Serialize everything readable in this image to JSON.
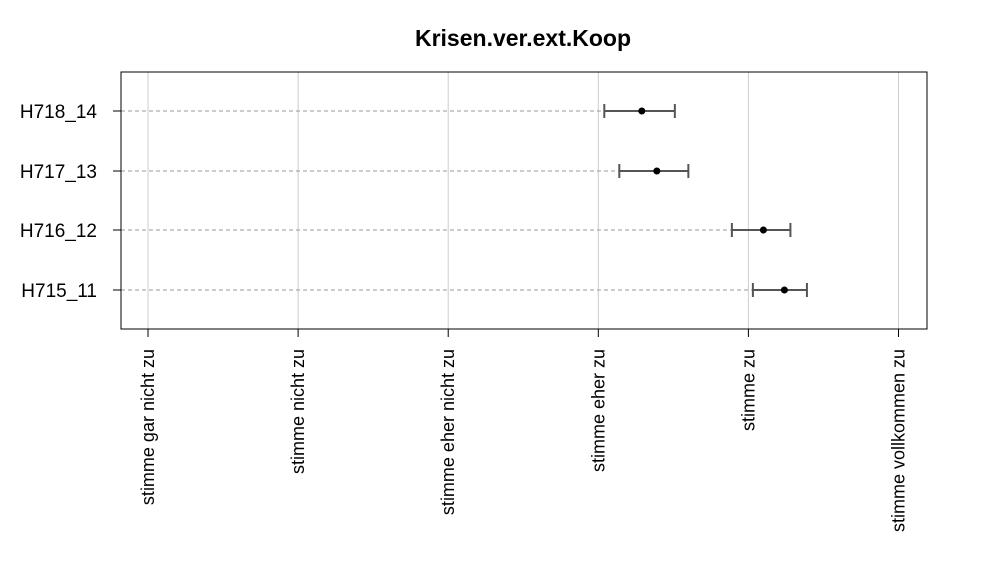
{
  "chart_data": {
    "type": "dot-errorbar",
    "title": "Krisen.ver.ext.Koop",
    "x_ticks": [
      {
        "value": 1,
        "label": "stimme gar nicht zu"
      },
      {
        "value": 2,
        "label": "stimme nicht zu"
      },
      {
        "value": 3,
        "label": "stimme eher nicht zu"
      },
      {
        "value": 4,
        "label": "stimme eher zu"
      },
      {
        "value": 5,
        "label": "stimme zu"
      },
      {
        "value": 6,
        "label": "stimme vollkommen zu"
      }
    ],
    "xlim": [
      0.82,
      6.19
    ],
    "grid": true,
    "items": [
      {
        "label": "H718_14",
        "mean": 4.29,
        "lower": 4.04,
        "upper": 4.51
      },
      {
        "label": "H717_13",
        "mean": 4.39,
        "lower": 4.14,
        "upper": 4.6
      },
      {
        "label": "H716_12",
        "mean": 5.1,
        "lower": 4.89,
        "upper": 5.28
      },
      {
        "label": "H715_11",
        "mean": 5.24,
        "lower": 5.03,
        "upper": 5.39
      }
    ],
    "colors": {
      "point": "#000000",
      "errorbar": "#555555",
      "grid": "#cccccc",
      "guide": "#999999"
    }
  }
}
